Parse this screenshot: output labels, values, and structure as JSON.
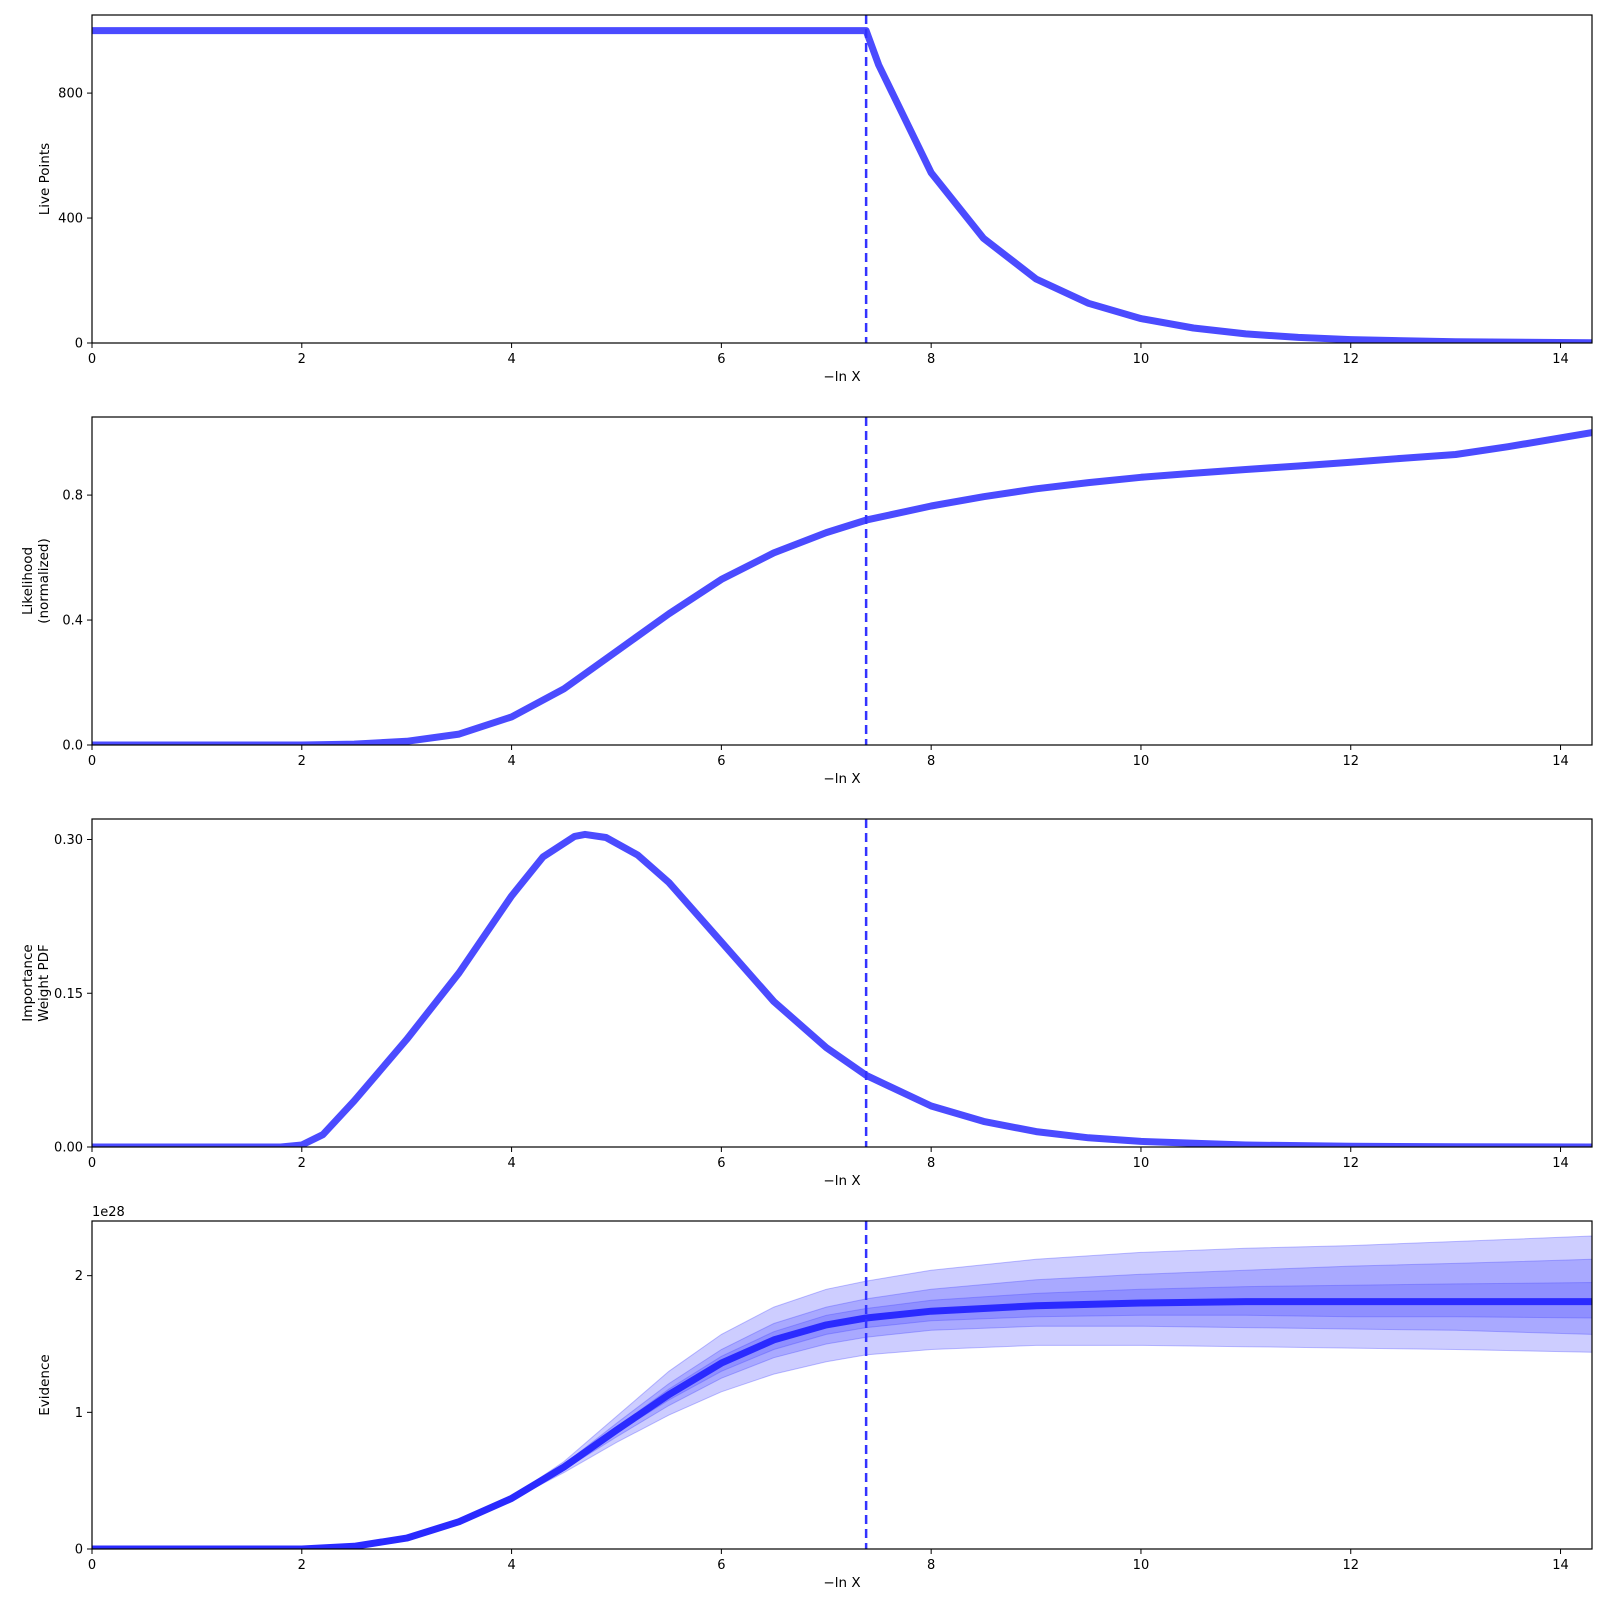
{
  "chart_data": [
    {
      "type": "line",
      "ylabel": [
        "Live Points"
      ],
      "xlabel": "−ln X",
      "xlim": [
        0,
        14.3
      ],
      "ylim": [
        0,
        1050
      ],
      "xticks": [
        0,
        2,
        4,
        6,
        8,
        10,
        12,
        14
      ],
      "yticks": [
        0,
        400,
        800
      ],
      "ytick_labels": [
        "0",
        "400",
        "800"
      ],
      "vline_x": 7.38,
      "line_color": "#4b4bff",
      "series": [
        {
          "x": [
            0,
            1,
            2,
            3,
            4,
            5,
            6,
            7,
            7.38,
            7.5,
            8,
            8.5,
            9,
            9.5,
            10,
            10.5,
            11,
            11.5,
            12,
            13,
            14.3
          ],
          "y": [
            1000,
            1000,
            1000,
            1000,
            1000,
            1000,
            1000,
            1000,
            1000,
            890,
            545,
            335,
            205,
            127,
            78,
            48,
            29,
            18,
            11,
            4,
            1
          ]
        }
      ]
    },
    {
      "type": "line",
      "ylabel": [
        "Likelihood",
        "(normalized)"
      ],
      "xlabel": "−ln X",
      "xlim": [
        0,
        14.3
      ],
      "ylim": [
        0,
        1.05
      ],
      "xticks": [
        0,
        2,
        4,
        6,
        8,
        10,
        12,
        14
      ],
      "yticks": [
        0,
        0.4,
        0.8
      ],
      "ytick_labels": [
        "0.0",
        "0.4",
        "0.8"
      ],
      "vline_x": 7.38,
      "line_color": "#4b4bff",
      "series": [
        {
          "x": [
            0,
            2,
            2.5,
            3,
            3.5,
            4,
            4.5,
            5,
            5.5,
            6,
            6.5,
            7,
            7.38,
            8,
            8.5,
            9,
            9.5,
            10,
            10.5,
            11,
            11.5,
            12,
            12.5,
            13,
            13.5,
            14.3
          ],
          "y": [
            0,
            0,
            0.003,
            0.012,
            0.035,
            0.09,
            0.18,
            0.3,
            0.42,
            0.53,
            0.615,
            0.68,
            0.72,
            0.765,
            0.795,
            0.82,
            0.84,
            0.857,
            0.87,
            0.882,
            0.893,
            0.905,
            0.918,
            0.93,
            0.955,
            1.0
          ]
        }
      ]
    },
    {
      "type": "line",
      "ylabel": [
        "Importance",
        "Weight PDF"
      ],
      "xlabel": "−ln X",
      "xlim": [
        0,
        14.3
      ],
      "ylim": [
        0,
        0.32
      ],
      "xticks": [
        0,
        2,
        4,
        6,
        8,
        10,
        12,
        14
      ],
      "yticks": [
        0,
        0.15,
        0.3
      ],
      "ytick_labels": [
        "0.00",
        "0.15",
        "0.30"
      ],
      "vline_x": 7.38,
      "line_color": "#4b4bff",
      "series": [
        {
          "x": [
            0,
            1.8,
            2.0,
            2.2,
            2.5,
            3.0,
            3.5,
            4.0,
            4.3,
            4.6,
            4.7,
            4.9,
            5.2,
            5.5,
            6.0,
            6.5,
            7.0,
            7.38,
            8.0,
            8.5,
            9.0,
            9.5,
            10.0,
            11.0,
            12.0,
            13.0,
            14.3
          ],
          "y": [
            0,
            0,
            0.002,
            0.012,
            0.045,
            0.105,
            0.17,
            0.245,
            0.283,
            0.303,
            0.305,
            0.302,
            0.285,
            0.258,
            0.2,
            0.142,
            0.097,
            0.07,
            0.04,
            0.025,
            0.015,
            0.009,
            0.0055,
            0.002,
            0.0007,
            0.0002,
            0
          ]
        }
      ]
    },
    {
      "type": "area",
      "ylabel": [
        "Evidence"
      ],
      "xlabel": "−ln X",
      "offset_text": "1e28",
      "xlim": [
        0,
        14.3
      ],
      "ylim": [
        0,
        2.4
      ],
      "xticks": [
        0,
        2,
        4,
        6,
        8,
        10,
        12,
        14
      ],
      "yticks": [
        0,
        1,
        2
      ],
      "ytick_labels": [
        "0",
        "1",
        "2"
      ],
      "vline_x": 7.38,
      "line_color": "#2a2aff",
      "band_color": "#4b4bff",
      "x": [
        0,
        2,
        2.5,
        3,
        3.5,
        4,
        4.5,
        5,
        5.5,
        6,
        6.5,
        7,
        7.38,
        8,
        9,
        10,
        11,
        12,
        13,
        14.3
      ],
      "median": [
        0,
        0,
        0.02,
        0.08,
        0.2,
        0.37,
        0.6,
        0.87,
        1.13,
        1.36,
        1.53,
        1.64,
        1.69,
        1.74,
        1.78,
        1.8,
        1.81,
        1.81,
        1.81,
        1.81
      ],
      "bands": [
        {
          "lower": [
            0,
            0,
            0.02,
            0.08,
            0.2,
            0.36,
            0.56,
            0.78,
            0.98,
            1.15,
            1.28,
            1.37,
            1.42,
            1.46,
            1.49,
            1.49,
            1.48,
            1.47,
            1.46,
            1.44
          ],
          "upper": [
            0,
            0,
            0.02,
            0.08,
            0.2,
            0.38,
            0.64,
            0.97,
            1.3,
            1.57,
            1.77,
            1.9,
            1.96,
            2.04,
            2.12,
            2.17,
            2.2,
            2.22,
            2.25,
            2.29
          ]
        },
        {
          "lower": [
            0,
            0,
            0.02,
            0.08,
            0.2,
            0.365,
            0.58,
            0.82,
            1.05,
            1.25,
            1.4,
            1.5,
            1.55,
            1.6,
            1.63,
            1.63,
            1.62,
            1.61,
            1.6,
            1.57
          ],
          "upper": [
            0,
            0,
            0.02,
            0.08,
            0.2,
            0.375,
            0.62,
            0.92,
            1.21,
            1.46,
            1.65,
            1.77,
            1.83,
            1.9,
            1.97,
            2.01,
            2.04,
            2.07,
            2.09,
            2.12
          ]
        },
        {
          "lower": [
            0,
            0,
            0.02,
            0.08,
            0.2,
            0.368,
            0.59,
            0.85,
            1.09,
            1.3,
            1.46,
            1.57,
            1.62,
            1.67,
            1.7,
            1.71,
            1.71,
            1.7,
            1.7,
            1.69
          ],
          "upper": [
            0,
            0,
            0.02,
            0.08,
            0.2,
            0.372,
            0.61,
            0.89,
            1.17,
            1.41,
            1.59,
            1.71,
            1.76,
            1.82,
            1.87,
            1.9,
            1.92,
            1.93,
            1.94,
            1.95
          ]
        }
      ]
    }
  ]
}
